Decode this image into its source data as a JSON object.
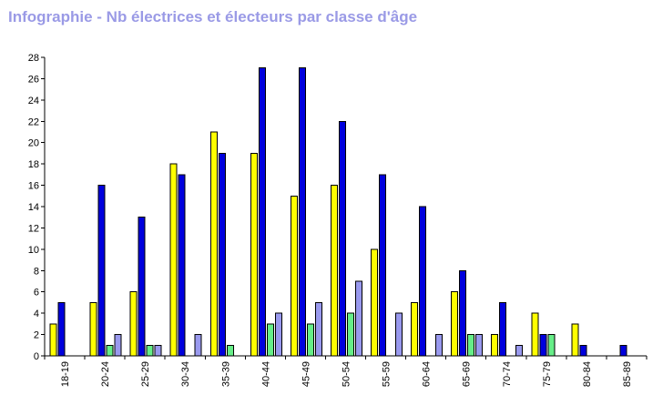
{
  "title": "Infographie - Nb électrices et électeurs par classe d'âge",
  "chart_data": {
    "type": "bar",
    "title": "Infographie - Nb électrices et électeurs par classe d'âge",
    "xlabel": "",
    "ylabel": "",
    "ylim": [
      0,
      28
    ],
    "ytick_step": 2,
    "grid": false,
    "categories": [
      "18-19",
      "20-24",
      "25-29",
      "30-34",
      "35-39",
      "40-44",
      "45-49",
      "50-54",
      "55-59",
      "60-64",
      "65-69",
      "70-74",
      "75-79",
      "80-84",
      "85-89"
    ],
    "series": [
      {
        "color": "#ffff00",
        "values": [
          3,
          5,
          6,
          18,
          21,
          19,
          15,
          16,
          10,
          5,
          6,
          2,
          4,
          3,
          0
        ]
      },
      {
        "color": "#0000dd",
        "values": [
          5,
          16,
          13,
          17,
          19,
          27,
          27,
          22,
          17,
          14,
          8,
          5,
          2,
          1,
          1
        ]
      },
      {
        "color": "#66ee88",
        "values": [
          0,
          1,
          1,
          0,
          1,
          3,
          3,
          4,
          0,
          0,
          2,
          0,
          2,
          0,
          0
        ]
      },
      {
        "color": "#9999ee",
        "values": [
          0,
          2,
          1,
          2,
          0,
          4,
          5,
          7,
          4,
          2,
          2,
          1,
          0,
          0,
          0
        ]
      }
    ]
  }
}
